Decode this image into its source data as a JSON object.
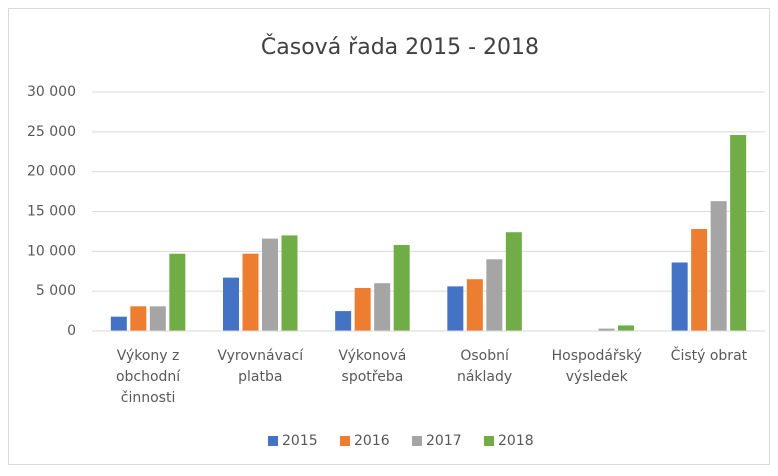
{
  "chart_data": {
    "type": "bar",
    "title": "Časová řada 2015 - 2018",
    "categories": [
      "Výkony z\nobchodní\nčinnosti",
      "Vyrovnávací\nplatba",
      "Výkonová\nspotřeba",
      "Osobní\nnáklady",
      "Hospodářský\nvýsledek",
      "Čistý obrat"
    ],
    "series": [
      {
        "name": "2015",
        "color": "#4472c4",
        "values": [
          1800,
          6700,
          2500,
          5600,
          0,
          8600
        ]
      },
      {
        "name": "2016",
        "color": "#ed7d31",
        "values": [
          3100,
          9700,
          5400,
          6500,
          0,
          12800
        ]
      },
      {
        "name": "2017",
        "color": "#a5a5a5",
        "values": [
          3100,
          11600,
          6000,
          9000,
          300,
          16300
        ]
      },
      {
        "name": "2018",
        "color": "#70ad47",
        "values": [
          9700,
          12000,
          10800,
          12400,
          700,
          24600
        ]
      }
    ],
    "ylim": [
      0,
      30000
    ],
    "yticks": [
      0,
      {
        "value": 5000,
        "label": "5 000"
      },
      {
        "value": 10000,
        "label": "10 000"
      },
      {
        "value": 15000,
        "label": "15 000"
      },
      {
        "value": 20000,
        "label": "20 000"
      },
      {
        "value": 25000,
        "label": "25 000"
      },
      {
        "value": 30000,
        "label": "30 000"
      }
    ],
    "grid": true,
    "legend": "bottom"
  }
}
